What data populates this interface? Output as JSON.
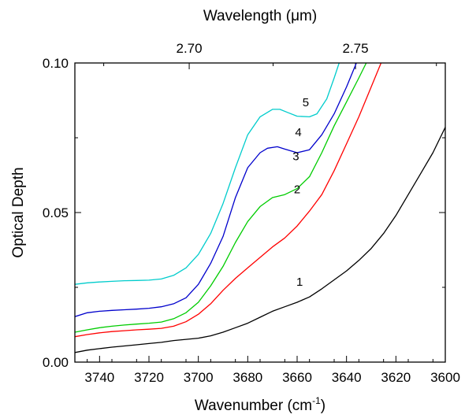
{
  "chart_data": {
    "type": "line",
    "xlabel": "Wavenumber (cm",
    "xlabel_sup": "-1",
    "xlabel_close": ")",
    "ylabel": "Optical Depth",
    "top_axis_label": "Wavelength (μm)",
    "xlim": [
      3750,
      3600
    ],
    "ylim": [
      0,
      0.1
    ],
    "x_ticks": [
      3740,
      3720,
      3700,
      3680,
      3660,
      3640,
      3620,
      3600
    ],
    "x_tick_labels": [
      "3740",
      "3720",
      "3700",
      "3680",
      "3660",
      "3640",
      "3620",
      "3600"
    ],
    "y_ticks": [
      0,
      0.05,
      0.1
    ],
    "y_tick_labels": [
      "0.00",
      "0.05",
      "0.10"
    ],
    "top_ticks_um": [
      2.7,
      2.75
    ],
    "top_tick_labels": [
      "2.70",
      "2.75"
    ],
    "grid": false,
    "series": [
      {
        "name": "1",
        "color": "#000000",
        "label_x": 3659,
        "label_y": 0.0255,
        "x": [
          3750,
          3745,
          3740,
          3735,
          3730,
          3725,
          3720,
          3715,
          3710,
          3705,
          3700,
          3695,
          3690,
          3685,
          3680,
          3675,
          3670,
          3665,
          3660,
          3655,
          3650,
          3645,
          3640,
          3635,
          3630,
          3625,
          3620,
          3615,
          3610,
          3605,
          3600
        ],
        "y": [
          0.0032,
          0.004,
          0.0045,
          0.005,
          0.0054,
          0.0058,
          0.0062,
          0.0066,
          0.0072,
          0.0076,
          0.008,
          0.0088,
          0.01,
          0.0115,
          0.013,
          0.015,
          0.017,
          0.0185,
          0.02,
          0.0218,
          0.0245,
          0.0275,
          0.0305,
          0.034,
          0.038,
          0.043,
          0.049,
          0.056,
          0.063,
          0.07,
          0.0785
        ]
      },
      {
        "name": "2",
        "color": "#ff0000",
        "label_x": 3660,
        "label_y": 0.0565,
        "x": [
          3750,
          3745,
          3740,
          3735,
          3730,
          3725,
          3720,
          3715,
          3710,
          3705,
          3700,
          3695,
          3690,
          3685,
          3680,
          3675,
          3670,
          3665,
          3660,
          3655,
          3650,
          3645,
          3640,
          3635,
          3630,
          3626
        ],
        "y": [
          0.0085,
          0.0092,
          0.0098,
          0.0102,
          0.0105,
          0.0108,
          0.011,
          0.0113,
          0.012,
          0.0135,
          0.016,
          0.0195,
          0.024,
          0.028,
          0.0315,
          0.035,
          0.0385,
          0.0415,
          0.0455,
          0.0505,
          0.056,
          0.064,
          0.073,
          0.082,
          0.092,
          0.1
        ]
      },
      {
        "name": "3",
        "color": "#00cc00",
        "label_x": 3660.5,
        "label_y": 0.0675,
        "x": [
          3750,
          3745,
          3740,
          3735,
          3730,
          3725,
          3720,
          3715,
          3710,
          3705,
          3700,
          3695,
          3690,
          3685,
          3680,
          3675,
          3670,
          3665,
          3660,
          3655,
          3650,
          3645,
          3640,
          3635,
          3632
        ],
        "y": [
          0.01,
          0.0108,
          0.0115,
          0.012,
          0.0124,
          0.0127,
          0.013,
          0.0134,
          0.0145,
          0.0165,
          0.02,
          0.0255,
          0.032,
          0.04,
          0.047,
          0.052,
          0.055,
          0.056,
          0.058,
          0.062,
          0.07,
          0.079,
          0.087,
          0.095,
          0.1
        ]
      },
      {
        "name": "4",
        "color": "#0000cc",
        "label_x": 3659.5,
        "label_y": 0.0755,
        "x": [
          3750,
          3745,
          3740,
          3735,
          3730,
          3725,
          3720,
          3715,
          3710,
          3705,
          3700,
          3695,
          3690,
          3685,
          3680,
          3675,
          3672,
          3668,
          3665,
          3660,
          3655,
          3650,
          3645,
          3640,
          3636
        ],
        "y": [
          0.0152,
          0.0165,
          0.017,
          0.0173,
          0.0175,
          0.0177,
          0.018,
          0.0185,
          0.0195,
          0.0215,
          0.026,
          0.033,
          0.042,
          0.055,
          0.065,
          0.07,
          0.0715,
          0.072,
          0.0712,
          0.07,
          0.071,
          0.076,
          0.083,
          0.092,
          0.1
        ]
      },
      {
        "name": "5",
        "color": "#00cccc",
        "label_x": 3656.5,
        "label_y": 0.0855,
        "x": [
          3750,
          3745,
          3740,
          3735,
          3730,
          3725,
          3720,
          3715,
          3710,
          3705,
          3700,
          3695,
          3690,
          3685,
          3680,
          3675,
          3670,
          3667,
          3664,
          3660,
          3655,
          3652,
          3648,
          3645,
          3643
        ],
        "y": [
          0.026,
          0.0265,
          0.0268,
          0.027,
          0.0272,
          0.0273,
          0.0274,
          0.0278,
          0.029,
          0.0315,
          0.036,
          0.043,
          0.053,
          0.065,
          0.076,
          0.082,
          0.0845,
          0.0845,
          0.0835,
          0.0822,
          0.082,
          0.083,
          0.088,
          0.095,
          0.1
        ]
      }
    ]
  }
}
